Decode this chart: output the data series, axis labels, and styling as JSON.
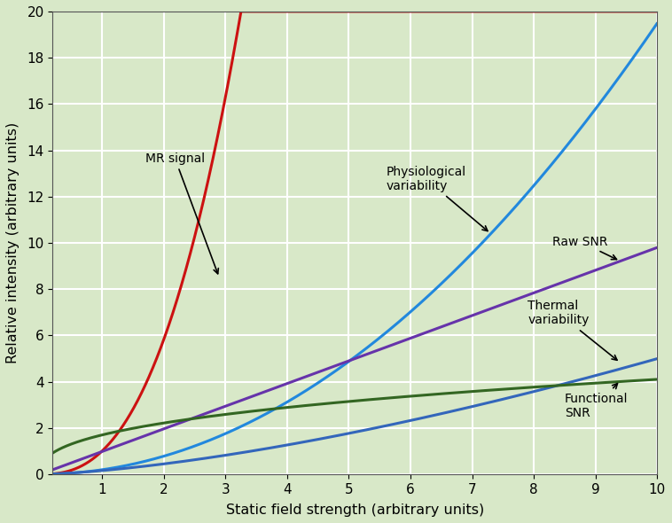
{
  "title": "",
  "xlabel": "Static field strength (arbitrary units)",
  "ylabel": "Relative intensity (arbitrary units)",
  "xlim": [
    0.2,
    10
  ],
  "ylim": [
    0,
    20
  ],
  "xticks": [
    1,
    2,
    3,
    4,
    5,
    6,
    7,
    8,
    9,
    10
  ],
  "yticks": [
    0,
    2,
    4,
    6,
    8,
    10,
    12,
    14,
    16,
    18,
    20
  ],
  "background_color": "#d8e8c8",
  "grid_color": "#ffffff",
  "curves": [
    {
      "label": "MR signal",
      "color": "#cc1111",
      "formula": "mr_signal",
      "annotation": "MR signal",
      "ann_x": 2.3,
      "ann_y": 13.5,
      "arr_x": 2.75,
      "arr_y": 9.0
    },
    {
      "label": "Physiological variability",
      "color": "#2288dd",
      "formula": "phys_var",
      "annotation": "Physiological\nvariability",
      "ann_x": 5.7,
      "ann_y": 12.5,
      "arr_x": 7.2,
      "arr_y": 10.4
    },
    {
      "label": "Raw SNR",
      "color": "#6633aa",
      "formula": "raw_snr",
      "annotation": "Raw SNR",
      "ann_x": 8.35,
      "ann_y": 9.8,
      "arr_x": 9.3,
      "arr_y": 9.1
    },
    {
      "label": "Thermal variability",
      "color": "#3366bb",
      "formula": "thermal_var",
      "annotation": "Thermal\nvariability",
      "ann_x": 8.1,
      "ann_y": 6.6,
      "arr_x": 9.3,
      "arr_y": 4.9
    },
    {
      "label": "Functional SNR",
      "color": "#336622",
      "formula": "func_snr",
      "annotation": "Functional\nSNR",
      "ann_x": 8.55,
      "ann_y": 2.5,
      "arr_x": 9.3,
      "arr_y": 4.0
    }
  ],
  "mr_exponent": 3.0,
  "mr_scale": 0.195,
  "phys_exponent": 2.0,
  "phys_scale": 0.195,
  "raw_scale": 0.98,
  "thermal_scale": 0.5,
  "func_scale": 1.32,
  "func_exponent": 0.5
}
